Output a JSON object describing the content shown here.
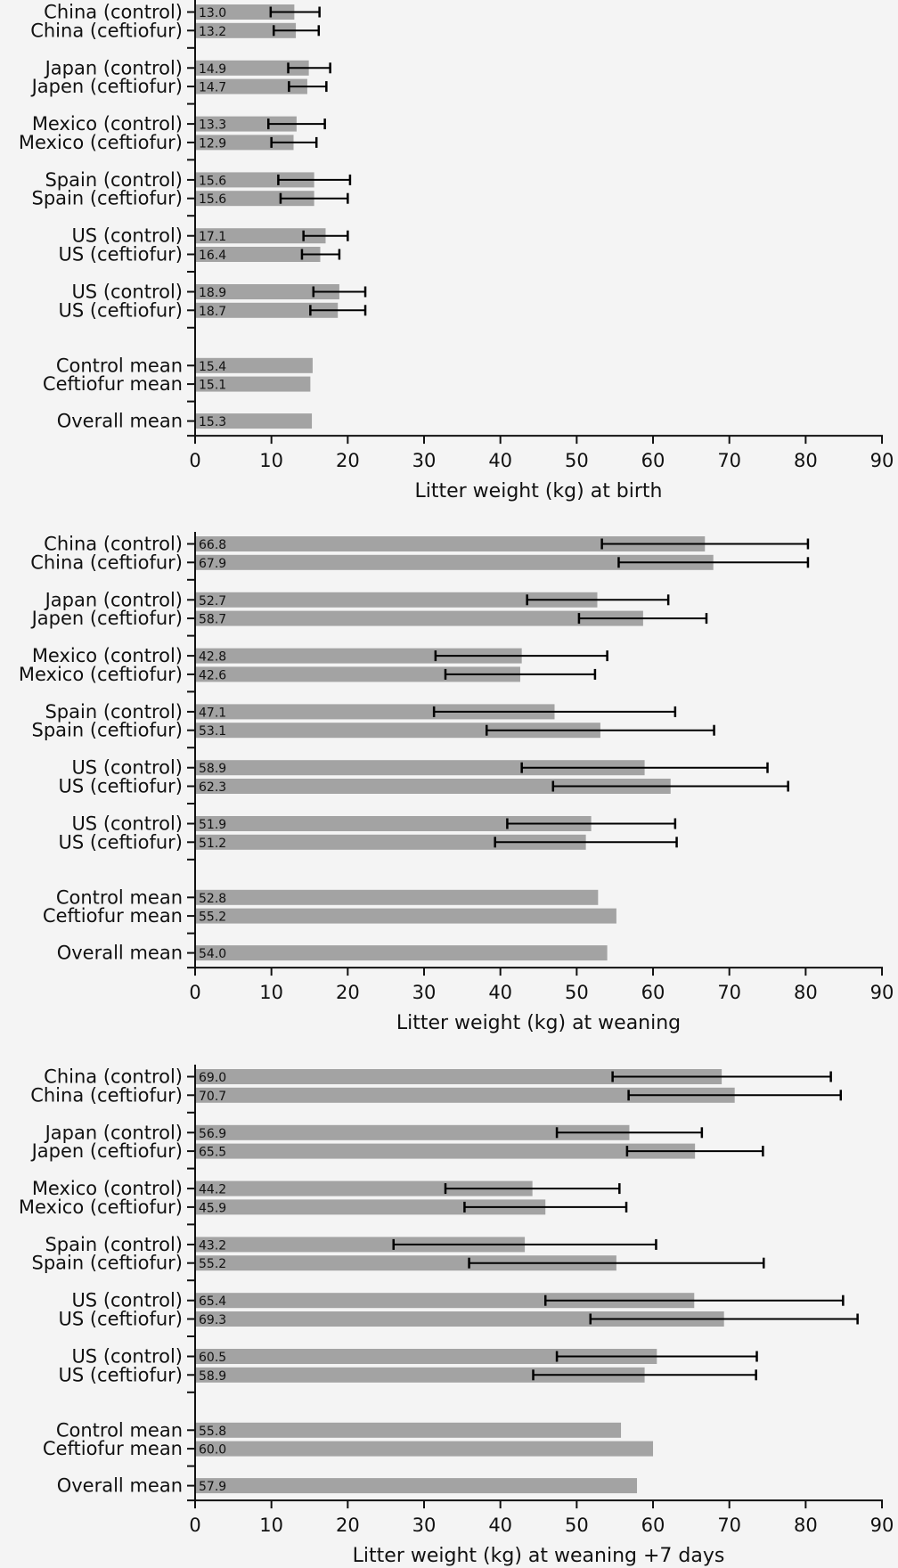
{
  "chart_data": [
    {
      "type": "bar",
      "orientation": "horizontal",
      "xlabel": "Litter weight (kg) at birth",
      "xlim": [
        0,
        90
      ],
      "xticks": [
        0,
        10,
        20,
        30,
        40,
        50,
        60,
        70,
        80,
        90
      ],
      "colors": {
        "bar": "#a3a3a3",
        "error": "#000000"
      },
      "rows": [
        {
          "label": "China (control)",
          "value": 13.0,
          "err_low": 9.9,
          "err_high": 16.3
        },
        {
          "label": "China (ceftiofur)",
          "value": 13.2,
          "err_low": 10.3,
          "err_high": 16.2
        },
        {
          "label": "Japan (control)",
          "value": 14.9,
          "err_low": 12.2,
          "err_high": 17.7
        },
        {
          "label": "Japen (ceftiofur)",
          "value": 14.7,
          "err_low": 12.3,
          "err_high": 17.2
        },
        {
          "label": "Mexico (control)",
          "value": 13.3,
          "err_low": 9.6,
          "err_high": 17.0
        },
        {
          "label": "Mexico (ceftiofur)",
          "value": 12.9,
          "err_low": 10.0,
          "err_high": 15.9
        },
        {
          "label": "Spain (control)",
          "value": 15.6,
          "err_low": 10.9,
          "err_high": 20.3
        },
        {
          "label": "Spain (ceftiofur)",
          "value": 15.6,
          "err_low": 11.2,
          "err_high": 20.0
        },
        {
          "label": "US (control)",
          "value": 17.1,
          "err_low": 14.2,
          "err_high": 20.0
        },
        {
          "label": "US (ceftiofur)",
          "value": 16.4,
          "err_low": 14.0,
          "err_high": 18.9
        },
        {
          "label": "US (control)",
          "value": 18.9,
          "err_low": 15.5,
          "err_high": 22.3
        },
        {
          "label": "US (ceftiofur)",
          "value": 18.7,
          "err_low": 15.1,
          "err_high": 22.3
        },
        {
          "label": "Control mean",
          "value": 15.4
        },
        {
          "label": "Ceftiofur mean",
          "value": 15.1
        },
        {
          "label": "Overall mean",
          "value": 15.3
        }
      ]
    },
    {
      "type": "bar",
      "orientation": "horizontal",
      "xlabel": "Litter weight (kg) at weaning",
      "xlim": [
        0,
        90
      ],
      "xticks": [
        0,
        10,
        20,
        30,
        40,
        50,
        60,
        70,
        80,
        90
      ],
      "colors": {
        "bar": "#a3a3a3",
        "error": "#000000"
      },
      "rows": [
        {
          "label": "China (control)",
          "value": 66.8,
          "err_low": 53.3,
          "err_high": 80.3
        },
        {
          "label": "China (ceftiofur)",
          "value": 67.9,
          "err_low": 55.5,
          "err_high": 80.3
        },
        {
          "label": "Japan (control)",
          "value": 52.7,
          "err_low": 43.5,
          "err_high": 62.0
        },
        {
          "label": "Japen (ceftiofur)",
          "value": 58.7,
          "err_low": 50.3,
          "err_high": 67.0
        },
        {
          "label": "Mexico (control)",
          "value": 42.8,
          "err_low": 31.5,
          "err_high": 54.0
        },
        {
          "label": "Mexico (ceftiofur)",
          "value": 42.6,
          "err_low": 32.8,
          "err_high": 52.4
        },
        {
          "label": "Spain (control)",
          "value": 47.1,
          "err_low": 31.3,
          "err_high": 62.9
        },
        {
          "label": "Spain (ceftiofur)",
          "value": 53.1,
          "err_low": 38.2,
          "err_high": 68.0
        },
        {
          "label": "US (control)",
          "value": 58.9,
          "err_low": 42.8,
          "err_high": 75.0
        },
        {
          "label": "US (ceftiofur)",
          "value": 62.3,
          "err_low": 46.9,
          "err_high": 77.7
        },
        {
          "label": "US (control)",
          "value": 51.9,
          "err_low": 40.9,
          "err_high": 62.9
        },
        {
          "label": "US (ceftiofur)",
          "value": 51.2,
          "err_low": 39.3,
          "err_high": 63.1
        },
        {
          "label": "Control mean",
          "value": 52.8
        },
        {
          "label": "Ceftiofur mean",
          "value": 55.2
        },
        {
          "label": "Overall mean",
          "value": 54.0
        }
      ]
    },
    {
      "type": "bar",
      "orientation": "horizontal",
      "xlabel": "Litter weight (kg) at weaning +7 days",
      "xlim": [
        0,
        90
      ],
      "xticks": [
        0,
        10,
        20,
        30,
        40,
        50,
        60,
        70,
        80,
        90
      ],
      "colors": {
        "bar": "#a3a3a3",
        "error": "#000000"
      },
      "rows": [
        {
          "label": "China (control)",
          "value": 69.0,
          "err_low": 54.7,
          "err_high": 83.3
        },
        {
          "label": "China (ceftiofur)",
          "value": 70.7,
          "err_low": 56.8,
          "err_high": 84.6
        },
        {
          "label": "Japan (control)",
          "value": 56.9,
          "err_low": 47.4,
          "err_high": 66.4
        },
        {
          "label": "Japen (ceftiofur)",
          "value": 65.5,
          "err_low": 56.6,
          "err_high": 74.4
        },
        {
          "label": "Mexico (control)",
          "value": 44.2,
          "err_low": 32.8,
          "err_high": 55.6
        },
        {
          "label": "Mexico (ceftiofur)",
          "value": 45.9,
          "err_low": 35.3,
          "err_high": 56.5
        },
        {
          "label": "Spain (control)",
          "value": 43.2,
          "err_low": 26.0,
          "err_high": 60.4
        },
        {
          "label": "Spain (ceftiofur)",
          "value": 55.2,
          "err_low": 35.9,
          "err_high": 74.5
        },
        {
          "label": "US (control)",
          "value": 65.4,
          "err_low": 45.9,
          "err_high": 84.9
        },
        {
          "label": "US (ceftiofur)",
          "value": 69.3,
          "err_low": 51.8,
          "err_high": 86.8
        },
        {
          "label": "US (control)",
          "value": 60.5,
          "err_low": 47.4,
          "err_high": 73.6
        },
        {
          "label": "US (ceftiofur)",
          "value": 58.9,
          "err_low": 44.3,
          "err_high": 73.5
        },
        {
          "label": "Control mean",
          "value": 55.8
        },
        {
          "label": "Ceftiofur mean",
          "value": 60.0
        },
        {
          "label": "Overall mean",
          "value": 57.9
        }
      ]
    }
  ]
}
